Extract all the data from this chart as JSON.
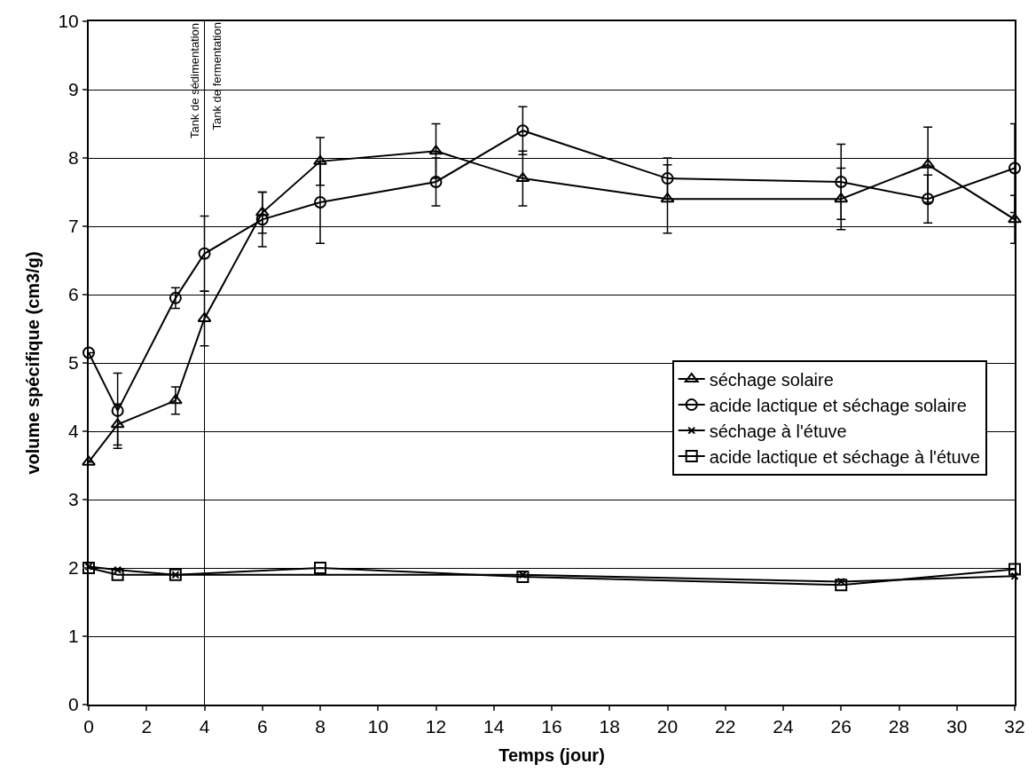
{
  "chart_data": {
    "type": "line",
    "xlabel": "Temps (jour)",
    "ylabel": "volume spécifique (cm3/g)",
    "xlim": [
      0,
      32
    ],
    "xticks": [
      0,
      2,
      4,
      6,
      8,
      10,
      12,
      14,
      16,
      18,
      20,
      22,
      24,
      26,
      28,
      30,
      32
    ],
    "ylim": [
      0,
      10
    ],
    "yticks": [
      0,
      1,
      2,
      3,
      4,
      5,
      6,
      7,
      8,
      9,
      10
    ],
    "grid": "y",
    "legend": "right",
    "series": [
      {
        "name": "séchage solaire",
        "color": "#000000",
        "marker": "triangle",
        "x": [
          0,
          1,
          3,
          4,
          6,
          8,
          12,
          15,
          20,
          26,
          29,
          32
        ],
        "values": [
          3.55,
          4.1,
          4.45,
          5.65,
          7.2,
          7.95,
          8.1,
          7.7,
          7.4,
          7.4,
          7.9,
          7.1
        ],
        "errors": [
          null,
          0.3,
          0.2,
          0.4,
          0.3,
          0.35,
          0.4,
          0.4,
          0.5,
          0.45,
          0.55,
          0.35
        ]
      },
      {
        "name": "acide lactique et séchage solaire",
        "color": "#000000",
        "marker": "circle",
        "x": [
          0,
          1,
          3,
          4,
          6,
          8,
          12,
          15,
          20,
          26,
          29,
          32
        ],
        "values": [
          5.15,
          4.3,
          5.95,
          6.6,
          7.1,
          7.35,
          7.65,
          8.4,
          7.7,
          7.65,
          7.4,
          7.85
        ],
        "errors": [
          null,
          0.55,
          0.15,
          0.55,
          0.4,
          0.6,
          0.35,
          0.35,
          0.3,
          0.55,
          0.35,
          0.65
        ]
      },
      {
        "name": "séchage à l'étuve",
        "color": "#000000",
        "marker": "cross",
        "x": [
          0,
          1,
          3,
          8,
          15,
          26,
          32
        ],
        "values": [
          2.02,
          1.97,
          1.9,
          null,
          1.9,
          1.8,
          1.88
        ]
      },
      {
        "name": "acide lactique et séchage à l'étuve",
        "color": "#000000",
        "marker": "square",
        "x": [
          0,
          1,
          3,
          8,
          15,
          26,
          32
        ],
        "values": [
          2.0,
          1.9,
          1.9,
          2.0,
          1.87,
          1.75,
          1.98
        ]
      }
    ],
    "ref_lines": [
      {
        "axis": "x",
        "value": 4,
        "label": "Tank de sédimentation",
        "color": "#000000"
      }
    ],
    "annotations": [
      {
        "text": "Tank de fermentation",
        "x": 4,
        "y": 10
      }
    ]
  }
}
